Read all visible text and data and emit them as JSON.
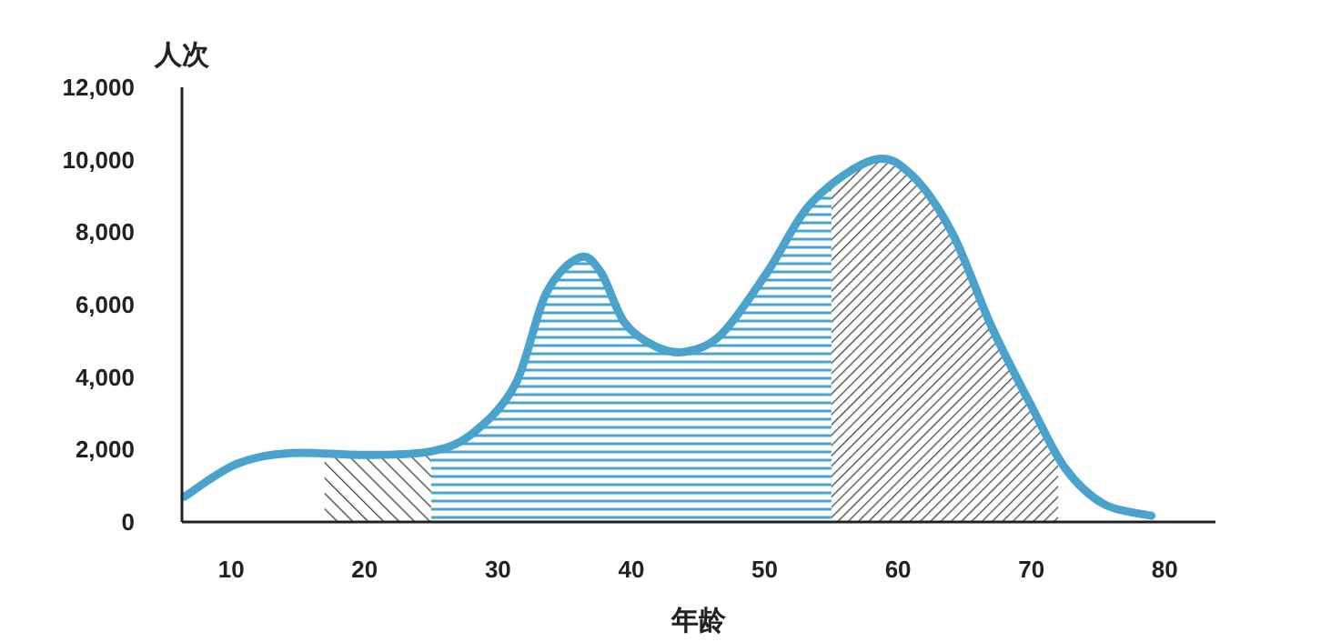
{
  "chart_data": {
    "type": "line",
    "xlabel": "年龄",
    "ylabel": "人次",
    "xlim": [
      6.3,
      83.8
    ],
    "ylim": [
      0,
      12000
    ],
    "xticks": [
      10,
      20,
      30,
      40,
      50,
      60,
      70,
      80
    ],
    "yticks": [
      0,
      {
        "value": 2000,
        "label": "2,000"
      },
      {
        "value": 4000,
        "label": "4,000"
      },
      {
        "value": 6000,
        "label": "6,000"
      },
      {
        "value": 8000,
        "label": "8,000"
      },
      {
        "value": 10000,
        "label": "10,000"
      },
      {
        "value": 12000,
        "label": "12,000"
      }
    ],
    "grid": false,
    "series": [
      {
        "color": "#4aa3cc",
        "x": [
          6.5,
          10.4,
          14.5,
          20,
          25,
          28.1,
          31.3,
          33.6,
          36.1,
          37.7,
          39.5,
          41.8,
          44.1,
          46.8,
          50.2,
          53.6,
          58.2,
          61.1,
          64.1,
          67,
          70,
          72.5,
          75.4,
          79
        ],
        "values": [
          700,
          1600,
          1900,
          1850,
          1950,
          2450,
          3800,
          6300,
          7300,
          6900,
          5500,
          4850,
          4700,
          5200,
          6900,
          8850,
          10000,
          9550,
          7950,
          5400,
          3200,
          1500,
          500,
          170
        ]
      }
    ],
    "bands": [
      {
        "axis": "x",
        "from": 17,
        "to": 25,
        "color": "#444444"
      },
      {
        "axis": "x",
        "from": 25,
        "to": 55,
        "color": "#4aa3cc"
      },
      {
        "axis": "x",
        "from": 55,
        "to": 72,
        "color": "#444444"
      }
    ]
  }
}
